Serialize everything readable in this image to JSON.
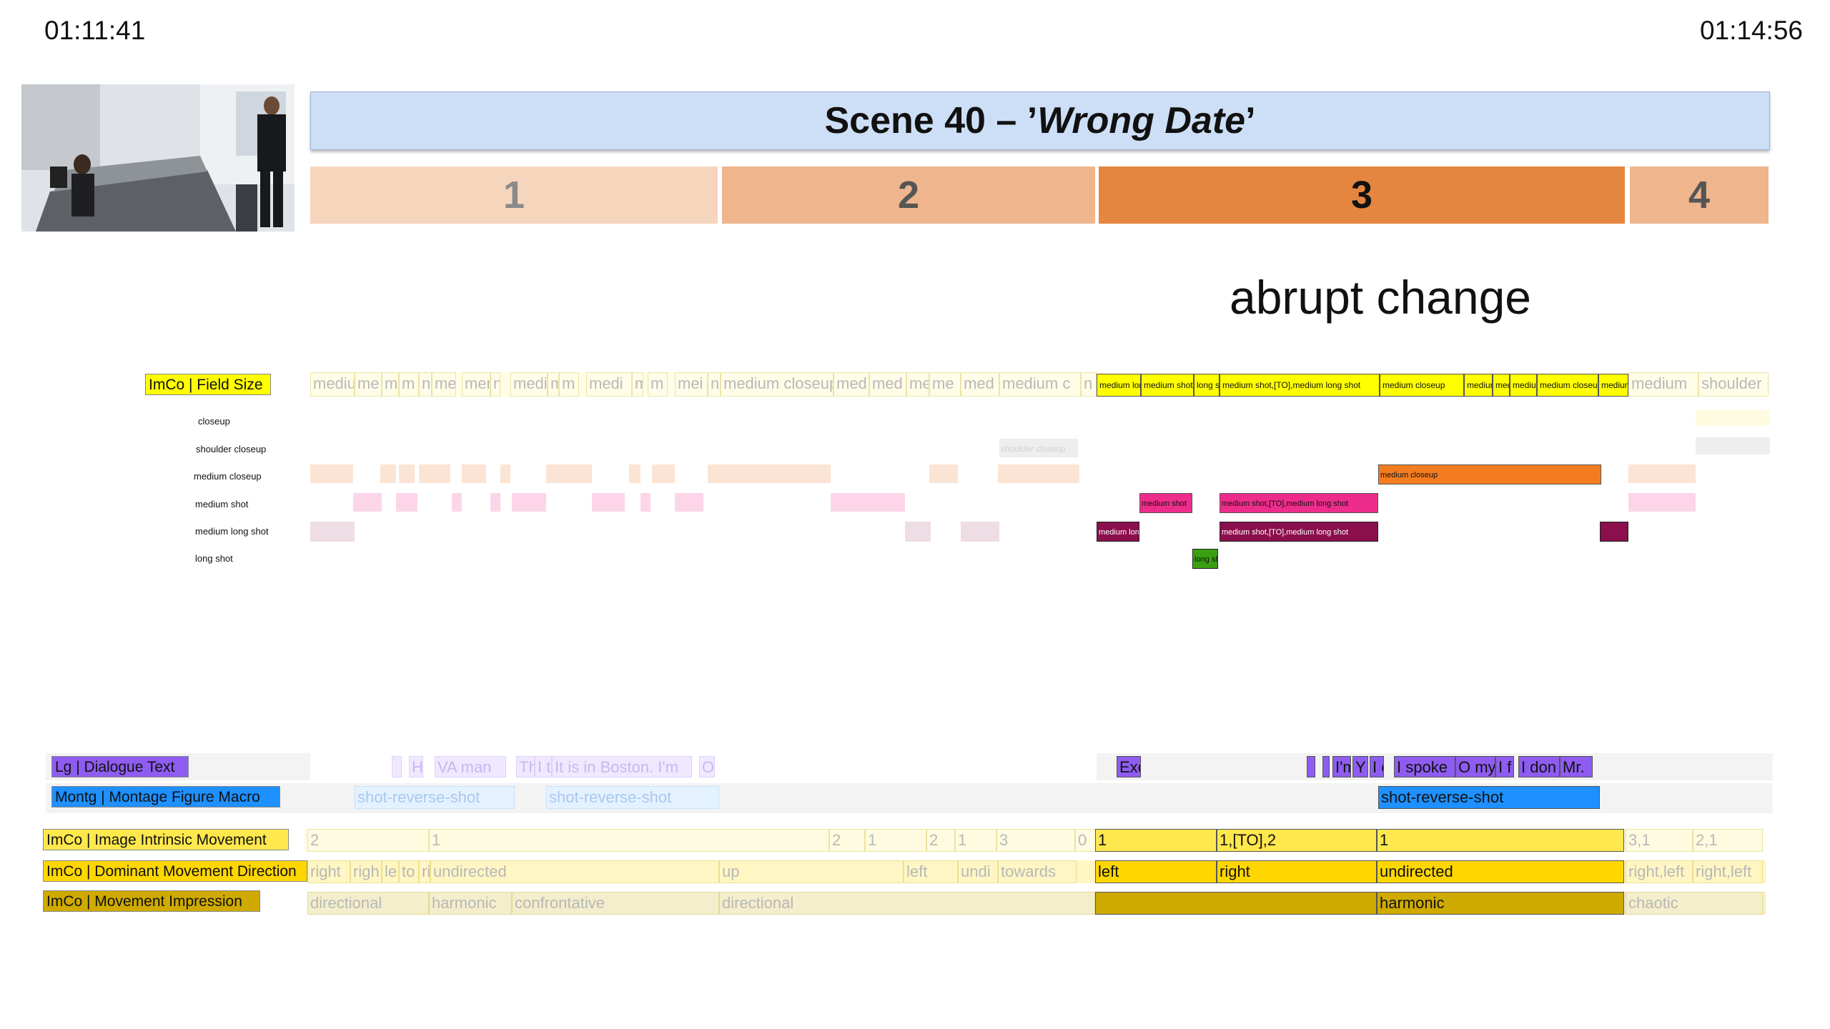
{
  "times": {
    "start": "01:11:41",
    "end": "01:14:56"
  },
  "title": {
    "prefix": "Scene 40 – ’",
    "name": "Wrong Date",
    "suffix": "’"
  },
  "segments": [
    {
      "label": "1",
      "color": "#f6d5bd",
      "text_color": "#8a8a8a"
    },
    {
      "label": "2",
      "color": "#efb58c",
      "text_color": "#555"
    },
    {
      "label": "3",
      "color": "#e48640",
      "text_color": "#111"
    },
    {
      "label": "4",
      "color": "#efb58c",
      "text_color": "#555"
    }
  ],
  "annotation": "abrupt change",
  "field_size": {
    "label": "ImCo | Field Size",
    "categories": [
      "closeup",
      "shoulder closeup",
      "medium closeup",
      "medium shot",
      "medium long shot",
      "long shot"
    ],
    "faded_cells": [
      "medium",
      "me",
      "m",
      "m",
      "n",
      "me",
      "men",
      "n",
      "medi",
      "m",
      "m",
      "medi",
      "m",
      "m",
      "mei",
      "n",
      "medium closeup",
      "med",
      "med",
      "me",
      "me",
      "med",
      "medium c",
      "n"
    ],
    "active_cells": [
      "medium long",
      "medium shot",
      "long sh",
      "medium shot,[TO],medium long shot",
      "medium closeup",
      "medium",
      "medi",
      "medium",
      "medium closeup",
      "medium"
    ],
    "right_cells": [
      "medium",
      "shoulder"
    ],
    "bar_texts": {
      "shoulder_closeup": "shoulder closeup",
      "medium_closeup": "medium closeup",
      "medium_shot_a": "medium shot",
      "medium_shot_b": "medium shot,[TO],medium long shot",
      "medium_long_a": "medium long shot",
      "medium_long_b": "medium shot,[TO],medium long shot",
      "long_shot": "long shot"
    }
  },
  "dialogue": {
    "label": "Lg | Dialogue Text",
    "faded": [
      "H",
      "VA man",
      "Th",
      "I t",
      "It is in Boston. I'm",
      "O"
    ],
    "active": [
      "Exc",
      "I'm",
      "Y",
      "I c",
      "I spoke",
      "O my",
      "I f",
      "I don",
      "Mr."
    ]
  },
  "montage": {
    "label": "Montg | Montage Figure Macro",
    "faded": [
      "shot-reverse-shot",
      "shot-reverse-shot"
    ],
    "active": [
      "shot-reverse-shot"
    ]
  },
  "intrinsic": {
    "label": "ImCo | Image Intrinsic Movement",
    "faded_left": [
      "2",
      "1",
      "2",
      "1",
      "2",
      "1",
      "3",
      "0"
    ],
    "active": [
      "1",
      "1,[TO],2",
      "1"
    ],
    "faded_right": [
      "3,1",
      "2,1"
    ]
  },
  "dominant": {
    "label": "ImCo | Dominant Movement Direction",
    "faded_left": [
      "right",
      "righ",
      "le",
      "to",
      "ri",
      "undirected",
      "up",
      "left",
      "undi",
      "towards"
    ],
    "active": [
      "left",
      "right",
      "undirected"
    ],
    "faded_right": [
      "right,left",
      "right,left"
    ]
  },
  "impression": {
    "label": "ImCo | Movement Impression",
    "faded_left": [
      "directional",
      "harmonic",
      "confrontative",
      "directional"
    ],
    "active": [
      "",
      "harmonic"
    ],
    "faded_right": [
      "chaotic"
    ]
  },
  "colors": {
    "title_bg": "#cddff6",
    "field_yellow": "#ffff00",
    "medium_closeup_orange": "#f47c20",
    "medium_shot_pink": "#ee2c8c",
    "medium_long_maroon": "#8a0f4c",
    "long_shot_green": "#3aa012",
    "dialogue_purple": "#8e5cf0",
    "montage_blue": "#1e90ff",
    "intrinsic_yellow": "#ffe84d",
    "dominant_yellow": "#ffd700",
    "impression_gold": "#cfaa00"
  }
}
